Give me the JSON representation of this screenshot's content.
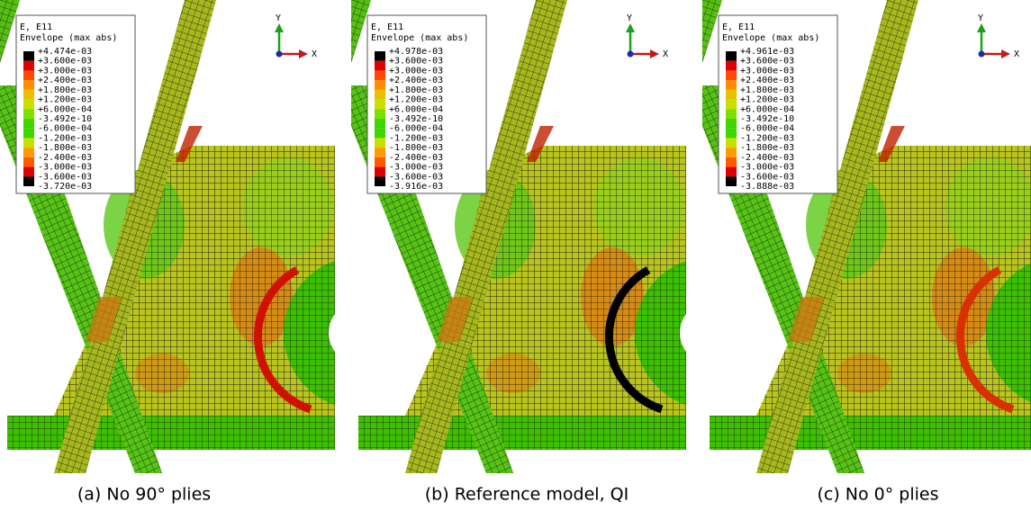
{
  "panels": [
    {
      "legend": {
        "title": "E, E11",
        "subtitle": "Envelope (max abs)",
        "labels": [
          "+4.474e-03",
          "+3.600e-03",
          "+3.000e-03",
          "+2.400e-03",
          "+1.800e-03",
          "+1.200e-03",
          "+6.000e-04",
          "-3.492e-10",
          "-6.000e-04",
          "-1.200e-03",
          "-1.800e-03",
          "-2.400e-03",
          "-3.000e-03",
          "-3.600e-03",
          "-3.720e-03"
        ]
      },
      "triad": {
        "y": "Y",
        "x": "X"
      },
      "caption": "(a) No 90° plies"
    },
    {
      "legend": {
        "title": "E, E11",
        "subtitle": "Envelope (max abs)",
        "labels": [
          "+4.978e-03",
          "+3.600e-03",
          "+3.000e-03",
          "+2.400e-03",
          "+1.800e-03",
          "+1.200e-03",
          "+6.000e-04",
          "-3.492e-10",
          "-6.000e-04",
          "-1.200e-03",
          "-1.800e-03",
          "-2.400e-03",
          "-3.000e-03",
          "-3.600e-03",
          "-3.916e-03"
        ]
      },
      "triad": {
        "y": "Y",
        "x": "X"
      },
      "caption": "(b) Reference model, QI"
    },
    {
      "legend": {
        "title": "E, E11",
        "subtitle": "Envelope (max abs)",
        "labels": [
          "+4.961e-03",
          "+3.600e-03",
          "+3.000e-03",
          "+2.400e-03",
          "+1.800e-03",
          "+1.200e-03",
          "+6.000e-04",
          "-3.492e-10",
          "-6.000e-04",
          "-1.200e-03",
          "-1.800e-03",
          "-2.400e-03",
          "-3.000e-03",
          "-3.600e-03",
          "-3.888e-03"
        ]
      },
      "triad": {
        "y": "Y",
        "x": "X"
      },
      "caption": "(c) No 0° plies"
    }
  ]
}
